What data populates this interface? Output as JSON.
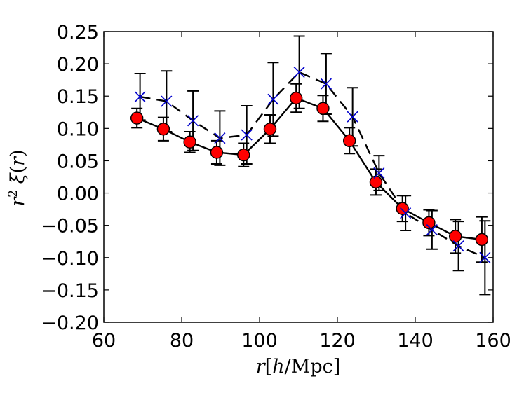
{
  "chart_data": {
    "type": "scatter",
    "xlabel": "r[h/Mpc]",
    "ylabel": "r² ξ(r)",
    "xlim": [
      60,
      160
    ],
    "ylim": [
      -0.2,
      0.25
    ],
    "xticks": [
      "60",
      "80",
      "100",
      "120",
      "140",
      "160"
    ],
    "yticks": [
      "0.25",
      "0.20",
      "0.15",
      "0.10",
      "0.05",
      "0.00",
      "−0.05",
      "−0.10",
      "−0.15",
      "−0.20"
    ],
    "grid": false,
    "series": [
      {
        "marker": "circle",
        "line": "solid",
        "color": "#ff0000",
        "line_color": "#000000",
        "x": [
          68.5,
          75.3,
          82.1,
          89.0,
          95.9,
          102.7,
          109.4,
          116.3,
          123.1,
          129.9,
          136.7,
          143.5,
          150.3,
          157.1
        ],
        "y": [
          0.116,
          0.099,
          0.079,
          0.063,
          0.059,
          0.099,
          0.147,
          0.131,
          0.081,
          0.017,
          -0.024,
          -0.046,
          -0.067,
          -0.072
        ],
        "err": [
          0.015,
          0.018,
          0.016,
          0.018,
          0.018,
          0.022,
          0.022,
          0.02,
          0.02,
          0.02,
          0.02,
          0.02,
          0.026,
          0.035
        ]
      },
      {
        "marker": "x",
        "line": "dashed",
        "color": "#0000cc",
        "line_color": "#000000",
        "x": [
          69.3,
          76.1,
          82.9,
          89.8,
          96.7,
          103.5,
          110.2,
          117.1,
          123.9,
          130.7,
          137.5,
          144.3,
          151.1,
          157.9
        ],
        "y": [
          0.149,
          0.142,
          0.112,
          0.085,
          0.09,
          0.145,
          0.187,
          0.169,
          0.118,
          0.031,
          -0.031,
          -0.057,
          -0.082,
          -0.1
        ],
        "err": [
          0.036,
          0.047,
          0.046,
          0.042,
          0.045,
          0.057,
          0.056,
          0.047,
          0.045,
          0.027,
          0.027,
          0.03,
          0.038,
          0.057
        ]
      }
    ]
  }
}
